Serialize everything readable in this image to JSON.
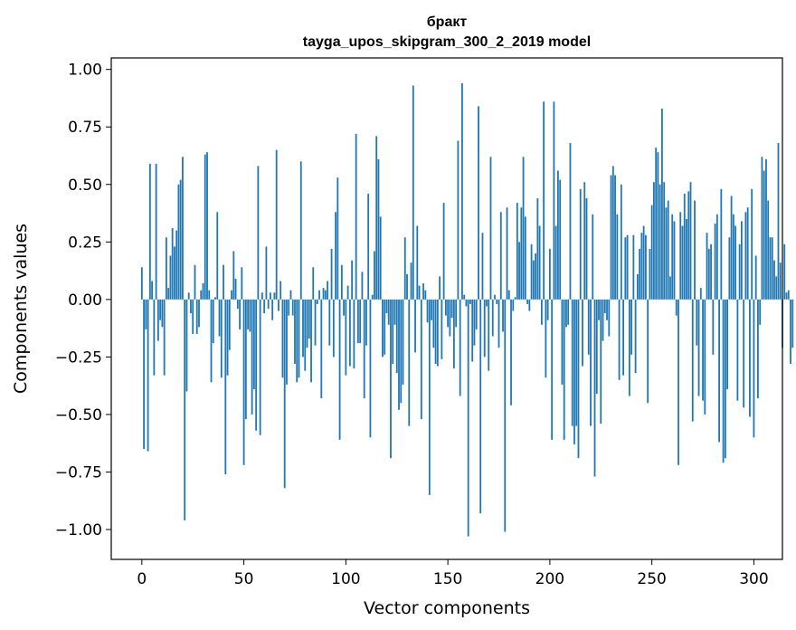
{
  "chart_data": {
    "type": "bar",
    "title_line1": "бракт",
    "title_line2": "tayga_upos_skipgram_300_2_2019 model",
    "xlabel": "Vector components",
    "ylabel": "Components values",
    "xlim": [
      -15,
      314
    ],
    "ylim": [
      -1.13,
      1.05
    ],
    "xticks": [
      0,
      50,
      100,
      150,
      200,
      250,
      300
    ],
    "yticks": [
      1.0,
      0.75,
      0.5,
      0.25,
      0.0,
      -0.25,
      -0.5,
      -0.75,
      -1.0
    ],
    "ytick_labels": [
      "1.00",
      "0.75",
      "0.50",
      "0.25",
      "0.00",
      "−0.25",
      "−0.50",
      "−0.75",
      "−1.00"
    ],
    "bar_color": "#1f77b4",
    "grid": false,
    "values": [
      0.14,
      -0.65,
      -0.13,
      -0.66,
      0.59,
      0.08,
      -0.33,
      0.59,
      -0.18,
      -0.09,
      -0.12,
      -0.33,
      0.27,
      0.05,
      0.19,
      0.31,
      0.23,
      0.3,
      0.5,
      0.52,
      0.62,
      -0.96,
      -0.4,
      0.03,
      -0.06,
      -0.15,
      0.15,
      -0.15,
      -0.12,
      0.04,
      0.07,
      0.63,
      0.64,
      0.04,
      -0.36,
      -0.19,
      0.01,
      0.38,
      -0.16,
      -0.34,
      0.15,
      -0.76,
      -0.33,
      -0.22,
      0.04,
      0.21,
      0.09,
      -0.04,
      -0.13,
      0.14,
      -0.72,
      -0.52,
      -0.13,
      -0.14,
      -0.5,
      -0.39,
      -0.57,
      0.58,
      -0.59,
      0.03,
      -0.06,
      0.23,
      -0.04,
      0.03,
      -0.09,
      0.03,
      0.65,
      -0.05,
      0.08,
      -0.34,
      -0.82,
      -0.37,
      -0.07,
      0.04,
      -0.07,
      -0.28,
      -0.36,
      -0.34,
      0.6,
      -0.25,
      -0.31,
      -0.21,
      -0.17,
      -0.36,
      0.14,
      -0.2,
      -0.02,
      0.04,
      -0.43,
      0.05,
      0.04,
      0.08,
      -0.2,
      0.22,
      -0.25,
      0.38,
      0.53,
      -0.61,
      0.15,
      -0.07,
      -0.33,
      0.06,
      -0.29,
      0.17,
      -0.3,
      0.72,
      -0.19,
      -0.19,
      0.12,
      -0.43,
      -0.2,
      0.46,
      -0.6,
      0.02,
      0.21,
      0.71,
      0.61,
      0.36,
      -0.25,
      -0.24,
      -0.06,
      -0.11,
      -0.69,
      -0.28,
      -0.11,
      -0.32,
      -0.48,
      -0.45,
      -0.37,
      0.27,
      0.11,
      -0.55,
      0.16,
      0.93,
      -0.23,
      0.32,
      0.06,
      -0.52,
      0.07,
      0.04,
      -0.1,
      -0.85,
      -0.09,
      -0.21,
      -0.28,
      -0.29,
      0.1,
      -0.26,
      0.42,
      -0.07,
      -0.12,
      -0.16,
      -0.08,
      -0.3,
      -0.12,
      0.69,
      -0.42,
      0.94,
      0.02,
      -0.03,
      -1.03,
      -0.02,
      -0.27,
      -0.2,
      -0.13,
      0.84,
      -0.93,
      0.29,
      -0.25,
      -0.03,
      -0.31,
      0.62,
      -0.16,
      0.02,
      -0.02,
      -0.21,
      0.38,
      -0.14,
      -1.01,
      0.4,
      0.04,
      -0.46,
      -0.05,
      0.01,
      0.42,
      0.25,
      0.4,
      0.62,
      0.36,
      -0.02,
      -0.05,
      0.24,
      0.17,
      0.2,
      0.44,
      0.32,
      -0.11,
      0.86,
      -0.34,
      -0.09,
      0.22,
      -0.61,
      0.86,
      0.32,
      0.56,
      0.52,
      -0.37,
      -0.61,
      -0.12,
      -0.11,
      0.68,
      -0.55,
      -0.63,
      -0.55,
      -0.69,
      0.48,
      -0.29,
      0.51,
      0.44,
      -0.24,
      -0.55,
      0.37,
      -0.77,
      -0.41,
      -0.09,
      -0.54,
      -0.18,
      -0.06,
      -0.09,
      -0.16,
      0.54,
      0.58,
      0.54,
      0.37,
      -0.35,
      0.5,
      -0.33,
      0.27,
      0.28,
      -0.42,
      -0.24,
      0.28,
      -0.32,
      0.11,
      0.22,
      0.29,
      0.32,
      0.28,
      -0.45,
      0.22,
      0.41,
      0.51,
      0.66,
      0.64,
      0.5,
      0.83,
      0.51,
      0.4,
      0.43,
      0.1,
      0.37,
      0.34,
      -0.07,
      -0.72,
      0.38,
      0.32,
      0.46,
      0.35,
      0.47,
      0.51,
      -0.53,
      0.43,
      -0.2,
      -0.42,
      0.05,
      -0.44,
      -0.5,
      0.29,
      0.22,
      0.24,
      -0.24,
      0.33,
      0.37,
      -0.62,
      0.48,
      -0.71,
      -0.69,
      -0.39,
      0.27,
      0.45,
      0.37,
      0.32,
      -0.44,
      0.24,
      0.34,
      -0.47,
      0.38,
      0.4,
      -0.51,
      0.48,
      -0.6,
      0.19,
      -0.43,
      -0.11,
      0.62,
      0.56,
      0.61,
      0.43,
      0.27,
      0.27,
      0.17,
      0.1,
      0.68,
      0.16,
      -0.21,
      0.24,
      0.03,
      0.04,
      -0.28,
      -0.21
    ]
  }
}
